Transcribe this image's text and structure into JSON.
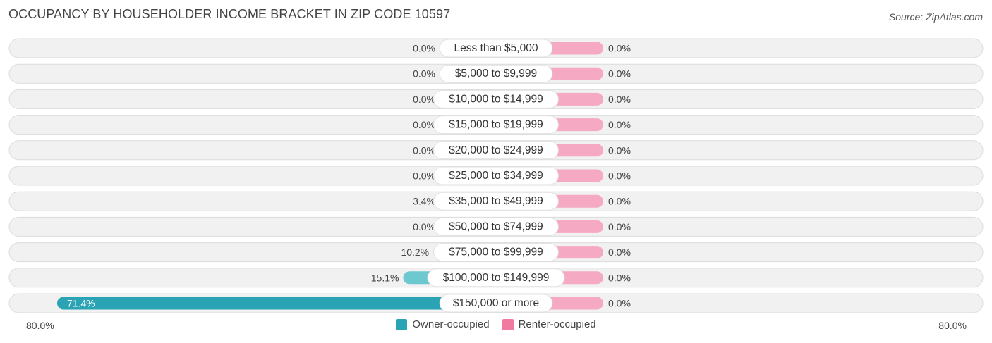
{
  "title": "OCCUPANCY BY HOUSEHOLDER INCOME BRACKET IN ZIP CODE 10597",
  "source": "Source: ZipAtlas.com",
  "colors": {
    "owner": "#6ec8d0",
    "owner_strong": "#2aa3b4",
    "renter": "#f6a9c3",
    "renter_legend": "#f07aa0",
    "row_bg": "#f1f1f1",
    "row_border": "#dcdcdc"
  },
  "chart_data": {
    "type": "bar",
    "orientation": "diverging-horizontal",
    "categories": [
      "Less than $5,000",
      "$5,000 to $9,999",
      "$10,000 to $14,999",
      "$15,000 to $19,999",
      "$20,000 to $24,999",
      "$25,000 to $34,999",
      "$35,000 to $49,999",
      "$50,000 to $74,999",
      "$75,000 to $99,999",
      "$100,000 to $149,999",
      "$150,000 or more"
    ],
    "series": [
      {
        "name": "Owner-occupied",
        "values": [
          0.0,
          0.0,
          0.0,
          0.0,
          0.0,
          0.0,
          3.4,
          0.0,
          10.2,
          15.1,
          71.4
        ],
        "labels": [
          "0.0%",
          "0.0%",
          "0.0%",
          "0.0%",
          "0.0%",
          "0.0%",
          "3.4%",
          "0.0%",
          "10.2%",
          "15.1%",
          "71.4%"
        ]
      },
      {
        "name": "Renter-occupied",
        "values": [
          0.0,
          0.0,
          0.0,
          0.0,
          0.0,
          0.0,
          0.0,
          0.0,
          0.0,
          0.0,
          0.0
        ],
        "labels": [
          "0.0%",
          "0.0%",
          "0.0%",
          "0.0%",
          "0.0%",
          "0.0%",
          "0.0%",
          "0.0%",
          "0.0%",
          "0.0%",
          "0.0%"
        ]
      }
    ],
    "xlim": [
      -80,
      80
    ],
    "axis_left_label": "80.0%",
    "axis_right_label": "80.0%",
    "legend_position": "bottom-center",
    "grid": false
  }
}
